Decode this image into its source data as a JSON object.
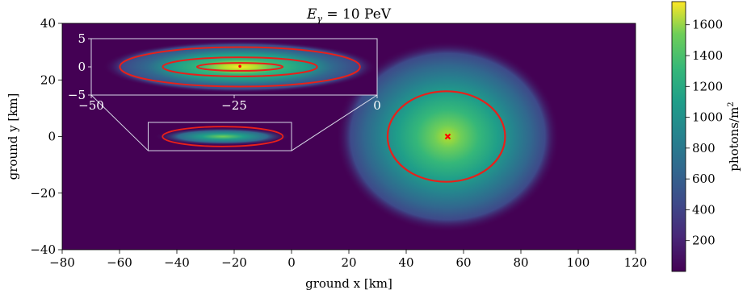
{
  "chart_data": {
    "type": "heatmap",
    "title": "E",
    "title_subscript": "γ",
    "title_suffix": " = 10 PeV",
    "xlabel": "ground x [km]",
    "ylabel": "ground y [km]",
    "xlim": [
      -80,
      120
    ],
    "ylim": [
      -40,
      40
    ],
    "x_ticks": [
      -80,
      -60,
      -40,
      -20,
      0,
      20,
      40,
      60,
      80,
      100,
      120
    ],
    "y_ticks": [
      -40,
      -20,
      0,
      20,
      40
    ],
    "x_tick_labels": [
      "−80",
      "−60",
      "−40",
      "−20",
      "0",
      "20",
      "40",
      "60",
      "80",
      "100",
      "120"
    ],
    "y_tick_labels": [
      "−40",
      "−20",
      "0",
      "20",
      "40"
    ],
    "colormap": "viridis",
    "colorbar": {
      "label": "photons/m",
      "label_superscript": "2",
      "range": [
        0,
        1750
      ],
      "ticks": [
        200,
        400,
        600,
        800,
        1000,
        1200,
        1400,
        1600
      ],
      "tick_labels": [
        "200",
        "400",
        "600",
        "800",
        "1000",
        "1200",
        "1400",
        "1600"
      ]
    },
    "main_spot": {
      "center": [
        54.5,
        0
      ],
      "peak": 1700,
      "sigma_x": 15,
      "sigma_y": 13,
      "contour_ellipse": {
        "center": [
          54,
          0
        ],
        "rx": 20.5,
        "ry": 16
      },
      "marker": {
        "x": 54.5,
        "y": 0,
        "color": "#ff0000",
        "symbol": "x"
      }
    },
    "inset_source_box": {
      "x": [
        -50,
        0
      ],
      "y": [
        -5,
        5
      ]
    },
    "inset": {
      "xlim": [
        -50,
        0
      ],
      "ylim": [
        -5,
        5
      ],
      "x_ticks": [
        -50,
        -25,
        0
      ],
      "y_ticks": [
        -5,
        0,
        5
      ],
      "x_tick_labels": [
        "−50",
        "−25",
        "0"
      ],
      "y_tick_labels": [
        "−5",
        "0",
        "5"
      ],
      "center": [
        -24,
        0
      ],
      "contours": [
        {
          "rx": 21,
          "ry": 3.5
        },
        {
          "rx": 13.5,
          "ry": 1.7
        },
        {
          "rx": 7.5,
          "ry": 0.7
        }
      ],
      "marker": {
        "x": -24,
        "y": 0.1
      }
    },
    "contour_color": "#e8201a"
  }
}
